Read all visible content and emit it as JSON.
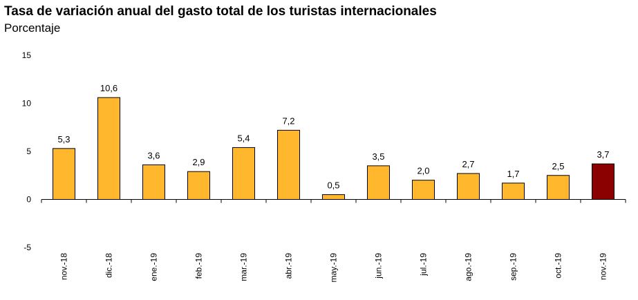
{
  "chart_data": {
    "type": "bar",
    "title": "Tasa de variación anual del gasto total de los turistas internacionales",
    "subtitle": "Porcentaje",
    "categories": [
      "nov.-18",
      "dic.-18",
      "ene.-19",
      "feb.-19",
      "mar.-19",
      "abr.-19",
      "may.-19",
      "jun.-19",
      "jul.-19",
      "ago.-19",
      "sep.-19",
      "oct.-19",
      "nov.-19"
    ],
    "values": [
      5.3,
      10.6,
      3.6,
      2.9,
      5.4,
      7.2,
      0.5,
      3.5,
      2.0,
      2.7,
      1.7,
      2.5,
      3.7
    ],
    "value_labels": [
      "5,3",
      "10,6",
      "3,6",
      "2,9",
      "5,4",
      "7,2",
      "0,5",
      "3,5",
      "2,0",
      "2,7",
      "1,7",
      "2,5",
      "3,7"
    ],
    "yticks": [
      15,
      10,
      5,
      0,
      -5
    ],
    "ylim": [
      -5,
      15
    ],
    "grid": false,
    "xlabel": "",
    "ylabel": "",
    "colors": {
      "bar": "#FFB72E",
      "highlight": "#8B0000",
      "outline": "#000000"
    },
    "highlight_index": 12
  }
}
